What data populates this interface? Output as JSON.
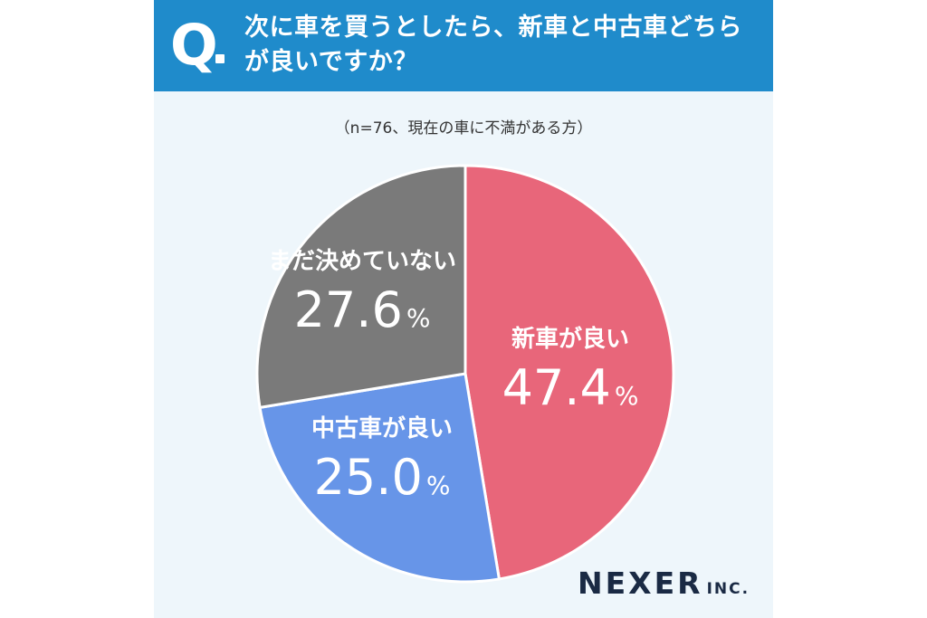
{
  "header": {
    "q_mark": "Q",
    "question": "次に車を買うとしたら、新車と中古車どちらが良いですか？"
  },
  "subtitle": "（n=76、現在の車に不満がある方）",
  "chart_data": {
    "type": "pie",
    "title": "次に車を買うとしたら、新車と中古車どちらが良いですか？",
    "subtitle": "（n=76、現在の車に不満がある方）",
    "unit": "%",
    "slices": [
      {
        "label": "新車が良い",
        "value": 47.4,
        "display": "47.4",
        "color": "#e8667a"
      },
      {
        "label": "中古車が良い",
        "value": 25.0,
        "display": "25.0",
        "color": "#6795e8"
      },
      {
        "label": "まだ決めていない",
        "value": 27.6,
        "display": "27.6",
        "color": "#7a7a7a"
      }
    ]
  },
  "logo": {
    "main": "NEXER",
    "suffix": "INC."
  }
}
